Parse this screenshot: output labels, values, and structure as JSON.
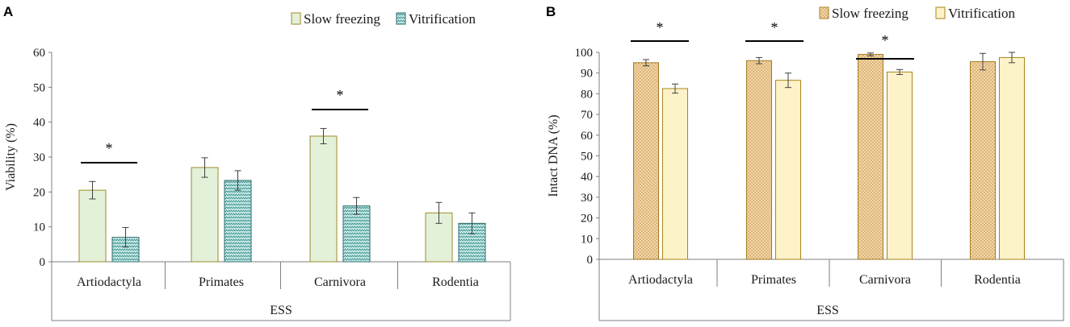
{
  "chart_data": [
    {
      "panel": "A",
      "type": "bar",
      "xlabel": "ESS",
      "ylabel": "Viability  (%)",
      "ylim": [
        0,
        60
      ],
      "ytick_step": 10,
      "grid": false,
      "legend_position": "top-right",
      "categories": [
        "Artiodactyla",
        "Primates",
        "Carnivora",
        "Rodentia"
      ],
      "series": [
        {
          "name": "Slow freezing",
          "values": [
            20.5,
            27,
            36,
            14
          ],
          "errors": [
            2.5,
            2.8,
            2.2,
            3
          ],
          "fill": "#e3f1d9",
          "stroke": "#9f8a2b",
          "pattern": "solid"
        },
        {
          "name": "Vitrification",
          "values": [
            7,
            23.3,
            16,
            11
          ],
          "errors": [
            2.8,
            2.8,
            2.4,
            3
          ],
          "fill": "#c9eae6",
          "stroke": "#2e6b6b",
          "pattern": "zigzag"
        }
      ],
      "significance": [
        {
          "category": 0,
          "label": "*",
          "position": "above-group"
        },
        {
          "category": 2,
          "label": "*",
          "position": "above-group"
        }
      ]
    },
    {
      "panel": "B",
      "type": "bar",
      "xlabel": "ESS",
      "ylabel": "Intact DNA (%)",
      "ylim": [
        0,
        100
      ],
      "ytick_step": 10,
      "grid": false,
      "legend_position": "top-right",
      "categories": [
        "Artiodactyla",
        "Primates",
        "Carnivora",
        "Rodentia"
      ],
      "series": [
        {
          "name": "Slow freezing",
          "values": [
            95,
            96,
            99,
            95.5
          ],
          "errors": [
            1.5,
            1.5,
            0.7,
            4
          ],
          "fill": "#f3d5a8",
          "stroke": "#a47b22",
          "pattern": "dots"
        },
        {
          "name": "Vitrification",
          "values": [
            82.5,
            86.5,
            90.5,
            97.5
          ],
          "errors": [
            2.2,
            3.5,
            1.2,
            2.5
          ],
          "fill": "#fdf2c8",
          "stroke": "#a8861e",
          "pattern": "solid"
        }
      ],
      "significance": [
        {
          "category": 0,
          "label": "*",
          "position": "top"
        },
        {
          "category": 1,
          "label": "*",
          "position": "top"
        },
        {
          "category": 2,
          "label": "*",
          "position": "above-group"
        }
      ]
    }
  ]
}
